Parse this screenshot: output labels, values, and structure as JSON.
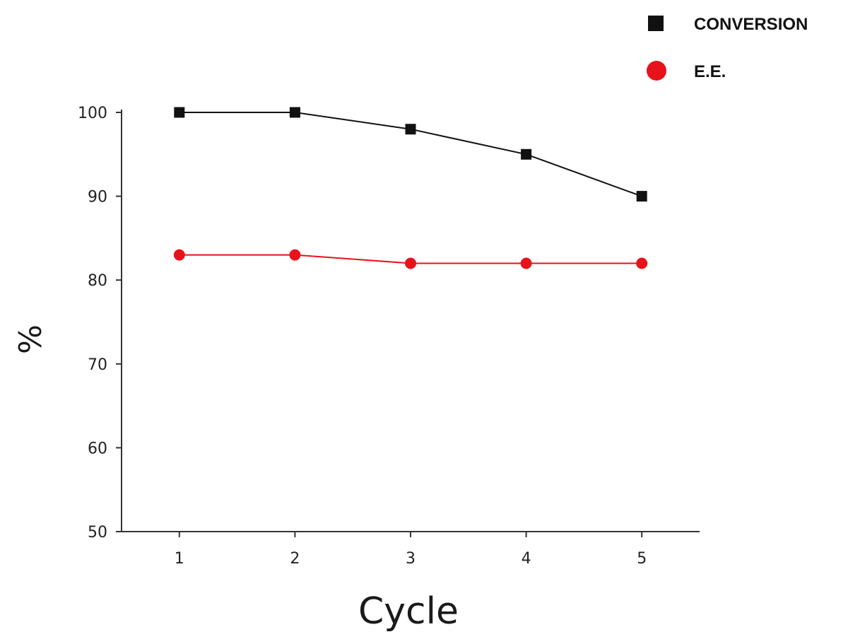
{
  "chart_data": {
    "type": "line",
    "x": [
      1,
      2,
      3,
      4,
      5
    ],
    "xticks": [
      "1",
      "2",
      "3",
      "4",
      "5"
    ],
    "xlim": [
      0.5,
      5.5
    ],
    "ylim": [
      50,
      100
    ],
    "yticks": [
      50,
      60,
      70,
      80,
      90,
      100
    ],
    "xlabel": "Cycle",
    "ylabel": "%",
    "grid": false,
    "legend_position": "top-right",
    "series": [
      {
        "name": "CONVERSION",
        "values": [
          100,
          100,
          98,
          95,
          90
        ],
        "color": "#111111",
        "marker": "square"
      },
      {
        "name": "E.E.",
        "values": [
          83,
          83,
          82,
          82,
          82
        ],
        "color": "#e8121a",
        "marker": "circle"
      }
    ]
  }
}
